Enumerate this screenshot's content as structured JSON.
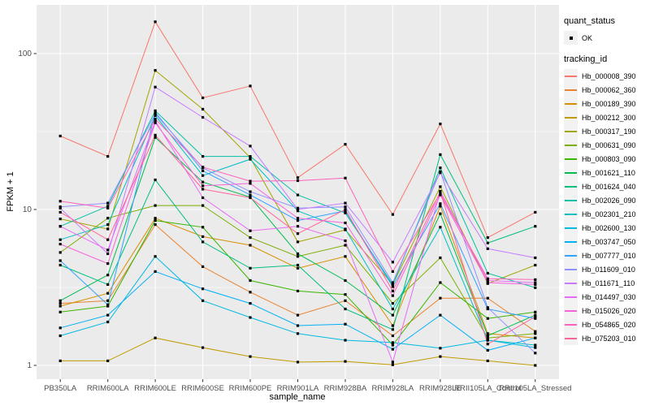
{
  "chart_data": {
    "type": "line",
    "xlabel": "sample_name",
    "ylabel": "FPKM + 1",
    "yscale": "log10",
    "yticks": [
      1,
      10,
      100
    ],
    "ylim_displayed": [
      0.8,
      205
    ],
    "grid": "white major and minor gridlines on gray panel",
    "legend_position": "right",
    "x_categories": [
      "PB350LA",
      "RRIM600LA",
      "RRIM600LE",
      "RRIM600SE",
      "RRIM600PE",
      "RRIM901LA",
      "RRIM928BA",
      "RRIM928LA",
      "RRIM928LE",
      "RRII105LA_Control",
      "RRII105LA_Stressed"
    ],
    "legend": {
      "quant_status": {
        "title": "quant_status",
        "items": [
          {
            "label": "OK",
            "marker": "black-point"
          }
        ]
      },
      "tracking_id": {
        "title": "tracking_id"
      }
    },
    "series": [
      {
        "name": "Hb_000008_390",
        "color": "#F8766D",
        "values": [
          29.6,
          21.9,
          160,
          52,
          62,
          16,
          26.2,
          9.3,
          35.4,
          6.6,
          9.6
        ]
      },
      {
        "name": "Hb_000062_360",
        "color": "#EA8331",
        "values": [
          2.5,
          2.6,
          8.0,
          4.3,
          2.95,
          2.1,
          2.6,
          1.55,
          2.7,
          2.7,
          1.65
        ]
      },
      {
        "name": "Hb_000189_390",
        "color": "#D89000",
        "values": [
          2.4,
          2.9,
          8.8,
          6.7,
          5.9,
          4.2,
          5.0,
          1.8,
          10.5,
          1.6,
          1.5
        ]
      },
      {
        "name": "Hb_000212_300",
        "color": "#C09B00",
        "values": [
          1.07,
          1.07,
          1.5,
          1.3,
          1.14,
          1.05,
          1.06,
          1.01,
          1.14,
          1.07,
          1.0
        ]
      },
      {
        "name": "Hb_000317_190",
        "color": "#A3A500",
        "values": [
          8.7,
          7.5,
          78,
          44,
          21.5,
          6.2,
          7.4,
          3.3,
          14.0,
          3.35,
          4.4
        ]
      },
      {
        "name": "Hb_000631_090",
        "color": "#7CAE00",
        "values": [
          5.3,
          8.8,
          10.6,
          10.6,
          6.6,
          5.0,
          5.9,
          2.5,
          4.9,
          1.5,
          1.6
        ]
      },
      {
        "name": "Hb_000803_090",
        "color": "#39B600",
        "values": [
          2.2,
          2.4,
          8.5,
          7.7,
          3.5,
          3.0,
          2.85,
          1.35,
          3.4,
          2.0,
          2.2
        ]
      },
      {
        "name": "Hb_001621_110",
        "color": "#00BB4E",
        "values": [
          2.6,
          3.8,
          29,
          15,
          12,
          5.2,
          3.5,
          2.1,
          9.4,
          1.55,
          2.1
        ]
      },
      {
        "name": "Hb_001624_040",
        "color": "#00BF7D",
        "values": [
          4.4,
          3.3,
          15.5,
          6.2,
          4.2,
          4.4,
          2.3,
          1.7,
          22.5,
          6.1,
          7.8
        ]
      },
      {
        "name": "Hb_002026_090",
        "color": "#00C1A3",
        "values": [
          7.8,
          10.5,
          43,
          21.9,
          21.9,
          12.4,
          9.5,
          3.3,
          18.5,
          3.9,
          3.15
        ]
      },
      {
        "name": "Hb_002301_210",
        "color": "#00BFC4",
        "values": [
          6.4,
          8.0,
          40,
          16.5,
          21,
          9.8,
          7.5,
          2.3,
          7.7,
          1.45,
          1.35
        ]
      },
      {
        "name": "Hb_002600_130",
        "color": "#00BAE0",
        "values": [
          1.55,
          1.9,
          5.0,
          2.6,
          2.03,
          1.6,
          1.45,
          1.4,
          1.29,
          1.45,
          1.3
        ]
      },
      {
        "name": "Hb_003747_050",
        "color": "#00B0F6",
        "values": [
          1.74,
          2.1,
          4.0,
          3.1,
          2.5,
          1.8,
          1.84,
          1.27,
          2.1,
          1.25,
          1.5
        ]
      },
      {
        "name": "Hb_007777_010",
        "color": "#35A2FF",
        "values": [
          4.7,
          2.45,
          42,
          17.7,
          12.4,
          8.5,
          9.8,
          3.2,
          10.9,
          2.3,
          2.0
        ]
      },
      {
        "name": "Hb_011609_010",
        "color": "#9590FF",
        "values": [
          10.4,
          11.0,
          41,
          18.5,
          13,
          10.2,
          10.4,
          3.4,
          17.5,
          2.35,
          1.2
        ]
      },
      {
        "name": "Hb_011671_110",
        "color": "#C77CFF",
        "values": [
          10.2,
          5.2,
          61,
          39,
          25.5,
          10.0,
          11.0,
          4.6,
          17.2,
          5.6,
          4.9
        ]
      },
      {
        "name": "Hb_014497_030",
        "color": "#E76BF3",
        "values": [
          7.8,
          5.5,
          37,
          11.9,
          7.3,
          7.8,
          6.3,
          1.05,
          13.1,
          3.5,
          3.4
        ]
      },
      {
        "name": "Hb_015026_020",
        "color": "#FA62DB",
        "values": [
          6.0,
          4.5,
          36,
          14.2,
          14.7,
          8.8,
          8.2,
          2.8,
          12.4,
          3.4,
          3.3
        ]
      },
      {
        "name": "Hb_054865_020",
        "color": "#FF62BC",
        "values": [
          11.3,
          10.2,
          38,
          18.7,
          15.2,
          15.3,
          15.9,
          4.0,
          12.7,
          3.6,
          3.55
        ]
      },
      {
        "name": "Hb_075203_010",
        "color": "#FF6598",
        "values": [
          9.6,
          6.4,
          30,
          13.5,
          11.9,
          7.0,
          10.0,
          3.0,
          13.0,
          1.37,
          2.05
        ]
      }
    ]
  },
  "colors": {
    "panel_bg": "#EBEBEB",
    "grid": "#FFFFFF",
    "tick_text": "#4D4D4D",
    "axis_title": "#000000",
    "legend_key_bg": "#F2F2F2",
    "marker": "#000000"
  }
}
